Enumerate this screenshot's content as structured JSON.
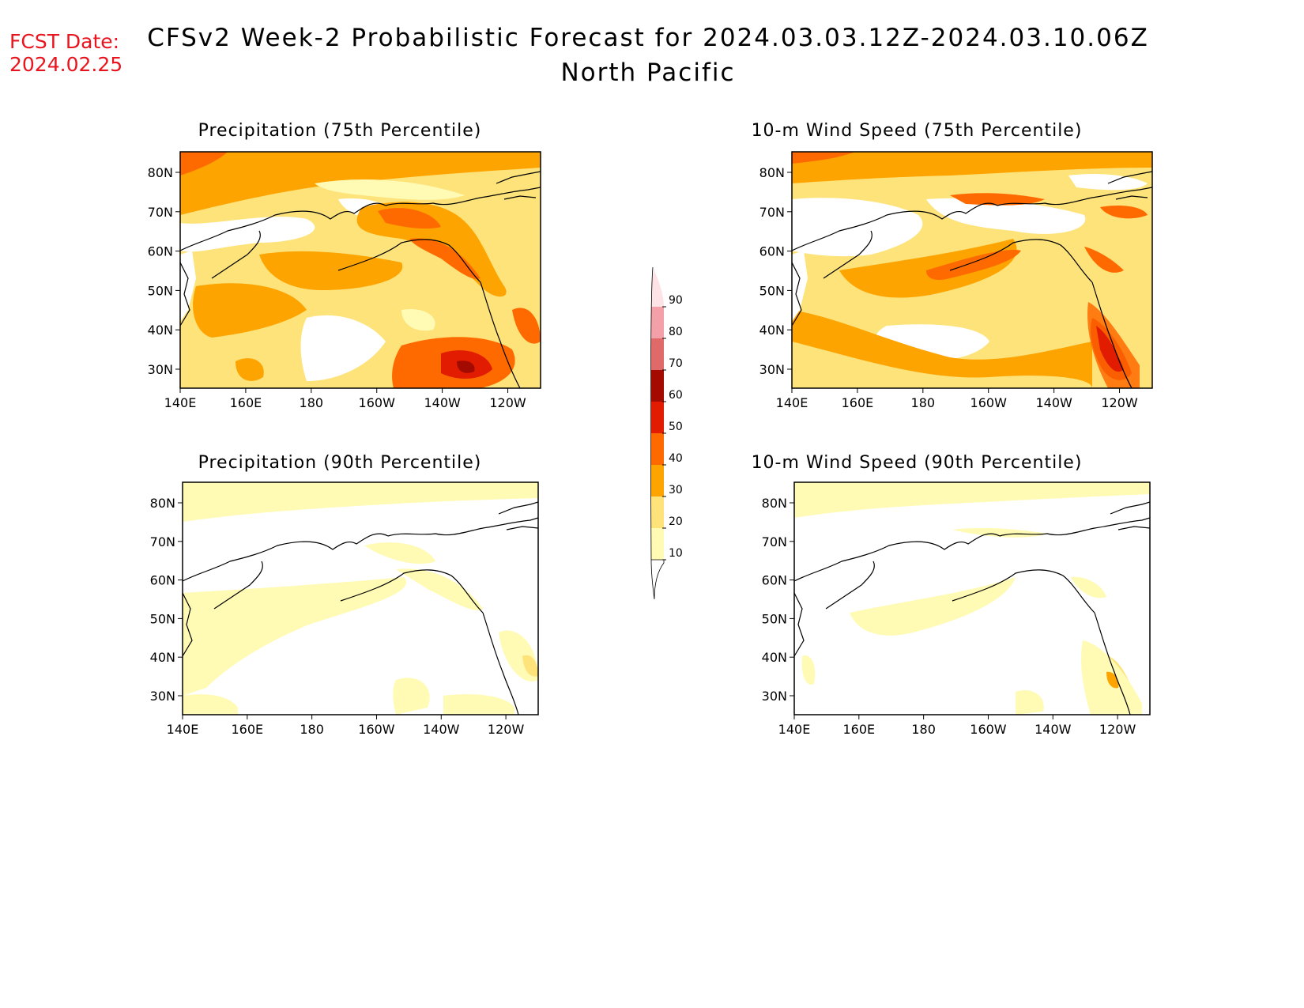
{
  "header": {
    "fcst_label": "FCST Date:",
    "fcst_date": "2024.02.25",
    "title": "CFSv2 Week-2 Probabilistic Forecast for 2024.03.03.12Z-2024.03.10.06Z",
    "region": "North Pacific"
  },
  "axes": {
    "lon_ticks": [
      "140E",
      "160E",
      "180",
      "160W",
      "140W",
      "120W"
    ],
    "lat_ticks": [
      "80N",
      "70N",
      "60N",
      "50N",
      "40N",
      "30N"
    ]
  },
  "panels": [
    {
      "id": "precip-75",
      "title": "Precipitation (75th Percentile)"
    },
    {
      "id": "wind-75",
      "title": "10-m Wind Speed (75th Percentile)"
    },
    {
      "id": "precip-90",
      "title": "Precipitation (90th Percentile)"
    },
    {
      "id": "wind-90",
      "title": "10-m Wind Speed (90th Percentile)"
    }
  ],
  "colorbar": {
    "levels": [
      "10",
      "20",
      "30",
      "40",
      "50",
      "60",
      "70",
      "80",
      "90"
    ],
    "colors": [
      "#fffab4",
      "#fde37a",
      "#fda400",
      "#ff6a00",
      "#e21c00",
      "#a40b00",
      "#e06a6a",
      "#f3a0a8",
      "#fde2e6"
    ]
  }
}
